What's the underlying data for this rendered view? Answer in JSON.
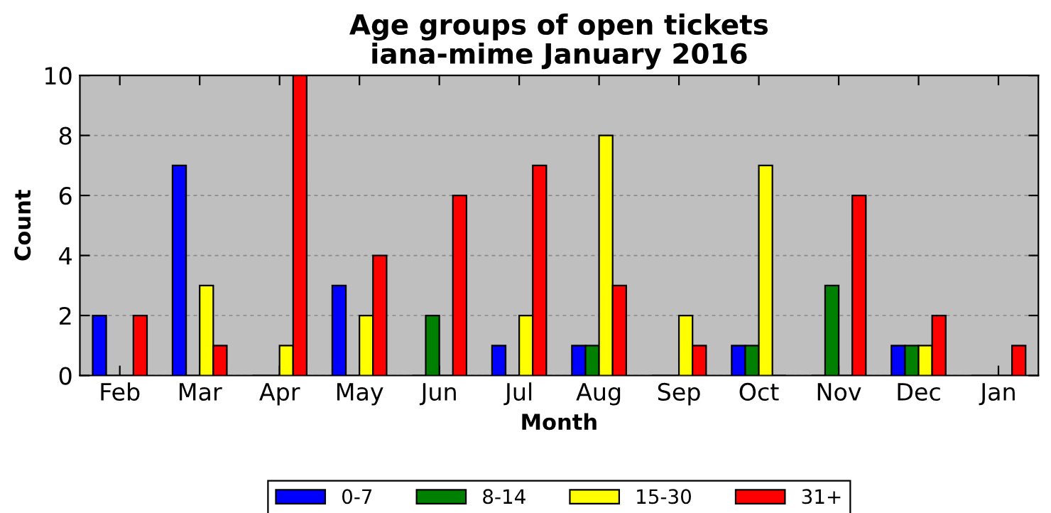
{
  "chart_data": {
    "type": "bar",
    "title": "Age groups of open tickets\niana-mime January 2016",
    "xlabel": "Month",
    "ylabel": "Count",
    "categories": [
      "Feb",
      "Mar",
      "Apr",
      "May",
      "Jun",
      "Jul",
      "Aug",
      "Sep",
      "Oct",
      "Nov",
      "Dec",
      "Jan"
    ],
    "series": [
      {
        "name": "0-7",
        "color": "#0000ff",
        "values": [
          2,
          7,
          0,
          3,
          0,
          1,
          1,
          0,
          1,
          0,
          1,
          0
        ]
      },
      {
        "name": "8-14",
        "color": "#008000",
        "values": [
          0,
          0,
          0,
          0,
          2,
          0,
          1,
          0,
          1,
          3,
          1,
          0
        ]
      },
      {
        "name": "15-30",
        "color": "#ffff00",
        "values": [
          0,
          3,
          1,
          2,
          0,
          2,
          8,
          2,
          7,
          0,
          1,
          0
        ]
      },
      {
        "name": "31+",
        "color": "#ff0000",
        "values": [
          2,
          1,
          10,
          4,
          6,
          7,
          3,
          1,
          0,
          6,
          2,
          1
        ]
      }
    ],
    "ylim": [
      0,
      10
    ],
    "yticks": [
      0,
      2,
      4,
      6,
      8,
      10
    ],
    "grid": "y",
    "legend": "bottom"
  }
}
